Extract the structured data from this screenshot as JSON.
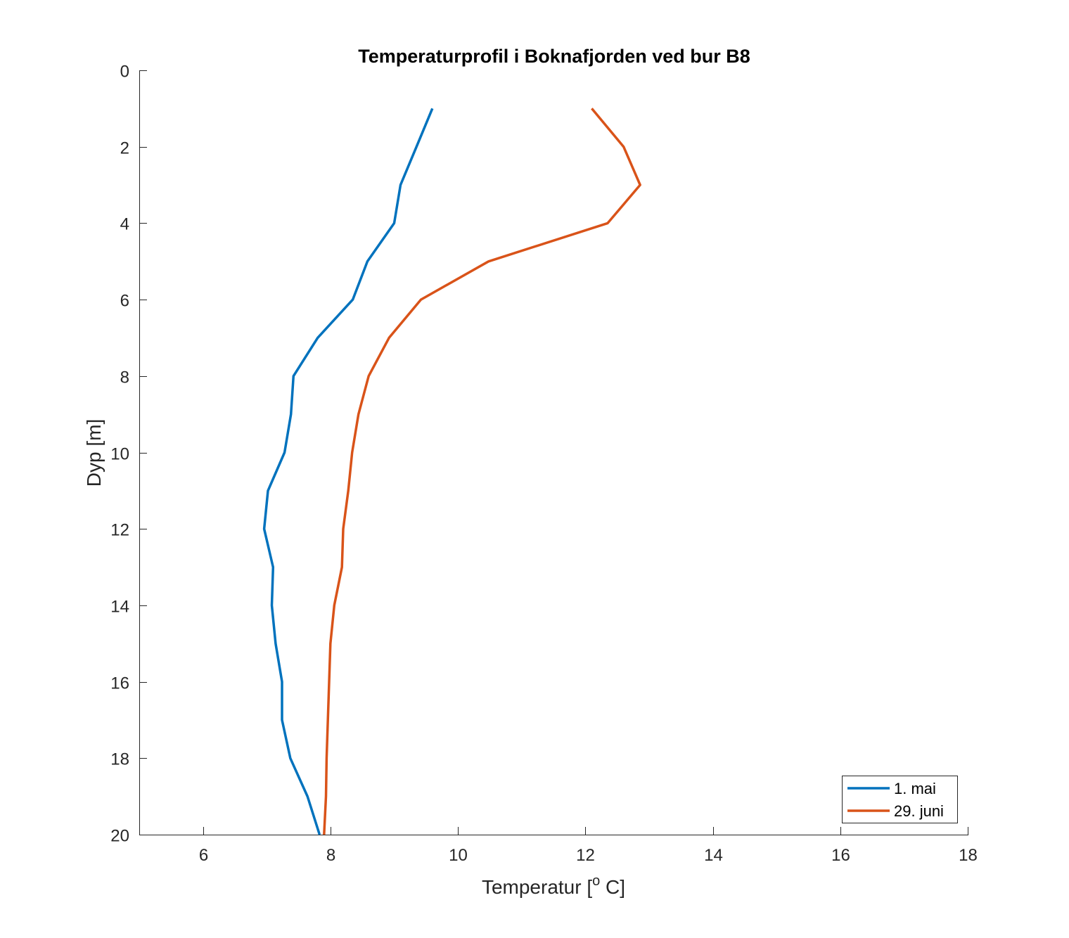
{
  "chart_data": {
    "type": "line",
    "title": "Temperaturprofil i Boknafjorden ved bur B8",
    "xlabel": "Temperatur [",
    "xlabel_sup": "o",
    "xlabel_unit": " C]",
    "ylabel": "Dyp [m]",
    "xlim": [
      5,
      18
    ],
    "ylim": [
      0,
      20
    ],
    "y_reversed": true,
    "xticks": [
      6,
      8,
      10,
      12,
      14,
      16,
      18
    ],
    "yticks": [
      0,
      2,
      4,
      6,
      8,
      10,
      12,
      14,
      16,
      18,
      20
    ],
    "grid": false,
    "legend_position": "bottom-right",
    "series": [
      {
        "name": "1. mai",
        "color": "#0072BD",
        "depth": [
          1,
          2,
          3,
          4,
          5,
          6,
          7,
          8,
          9,
          10,
          11,
          12,
          13,
          14,
          15,
          16,
          17,
          18,
          19,
          20
        ],
        "temperature": [
          9.6,
          9.35,
          9.1,
          9.0,
          8.58,
          8.35,
          7.8,
          7.42,
          7.38,
          7.28,
          7.02,
          6.96,
          7.1,
          7.08,
          7.14,
          7.24,
          7.24,
          7.37,
          7.64,
          7.83
        ]
      },
      {
        "name": "29. juni",
        "color": "#D95319",
        "depth": [
          1,
          2,
          3,
          4,
          5,
          6,
          7,
          8,
          9,
          10,
          11,
          12,
          13,
          14,
          15,
          16,
          17,
          18,
          19,
          20
        ],
        "temperature": [
          12.1,
          12.6,
          12.86,
          12.35,
          10.48,
          9.42,
          8.92,
          8.6,
          8.44,
          8.34,
          8.28,
          8.2,
          8.18,
          8.06,
          8.0,
          7.98,
          7.96,
          7.94,
          7.93,
          7.9
        ]
      }
    ]
  }
}
